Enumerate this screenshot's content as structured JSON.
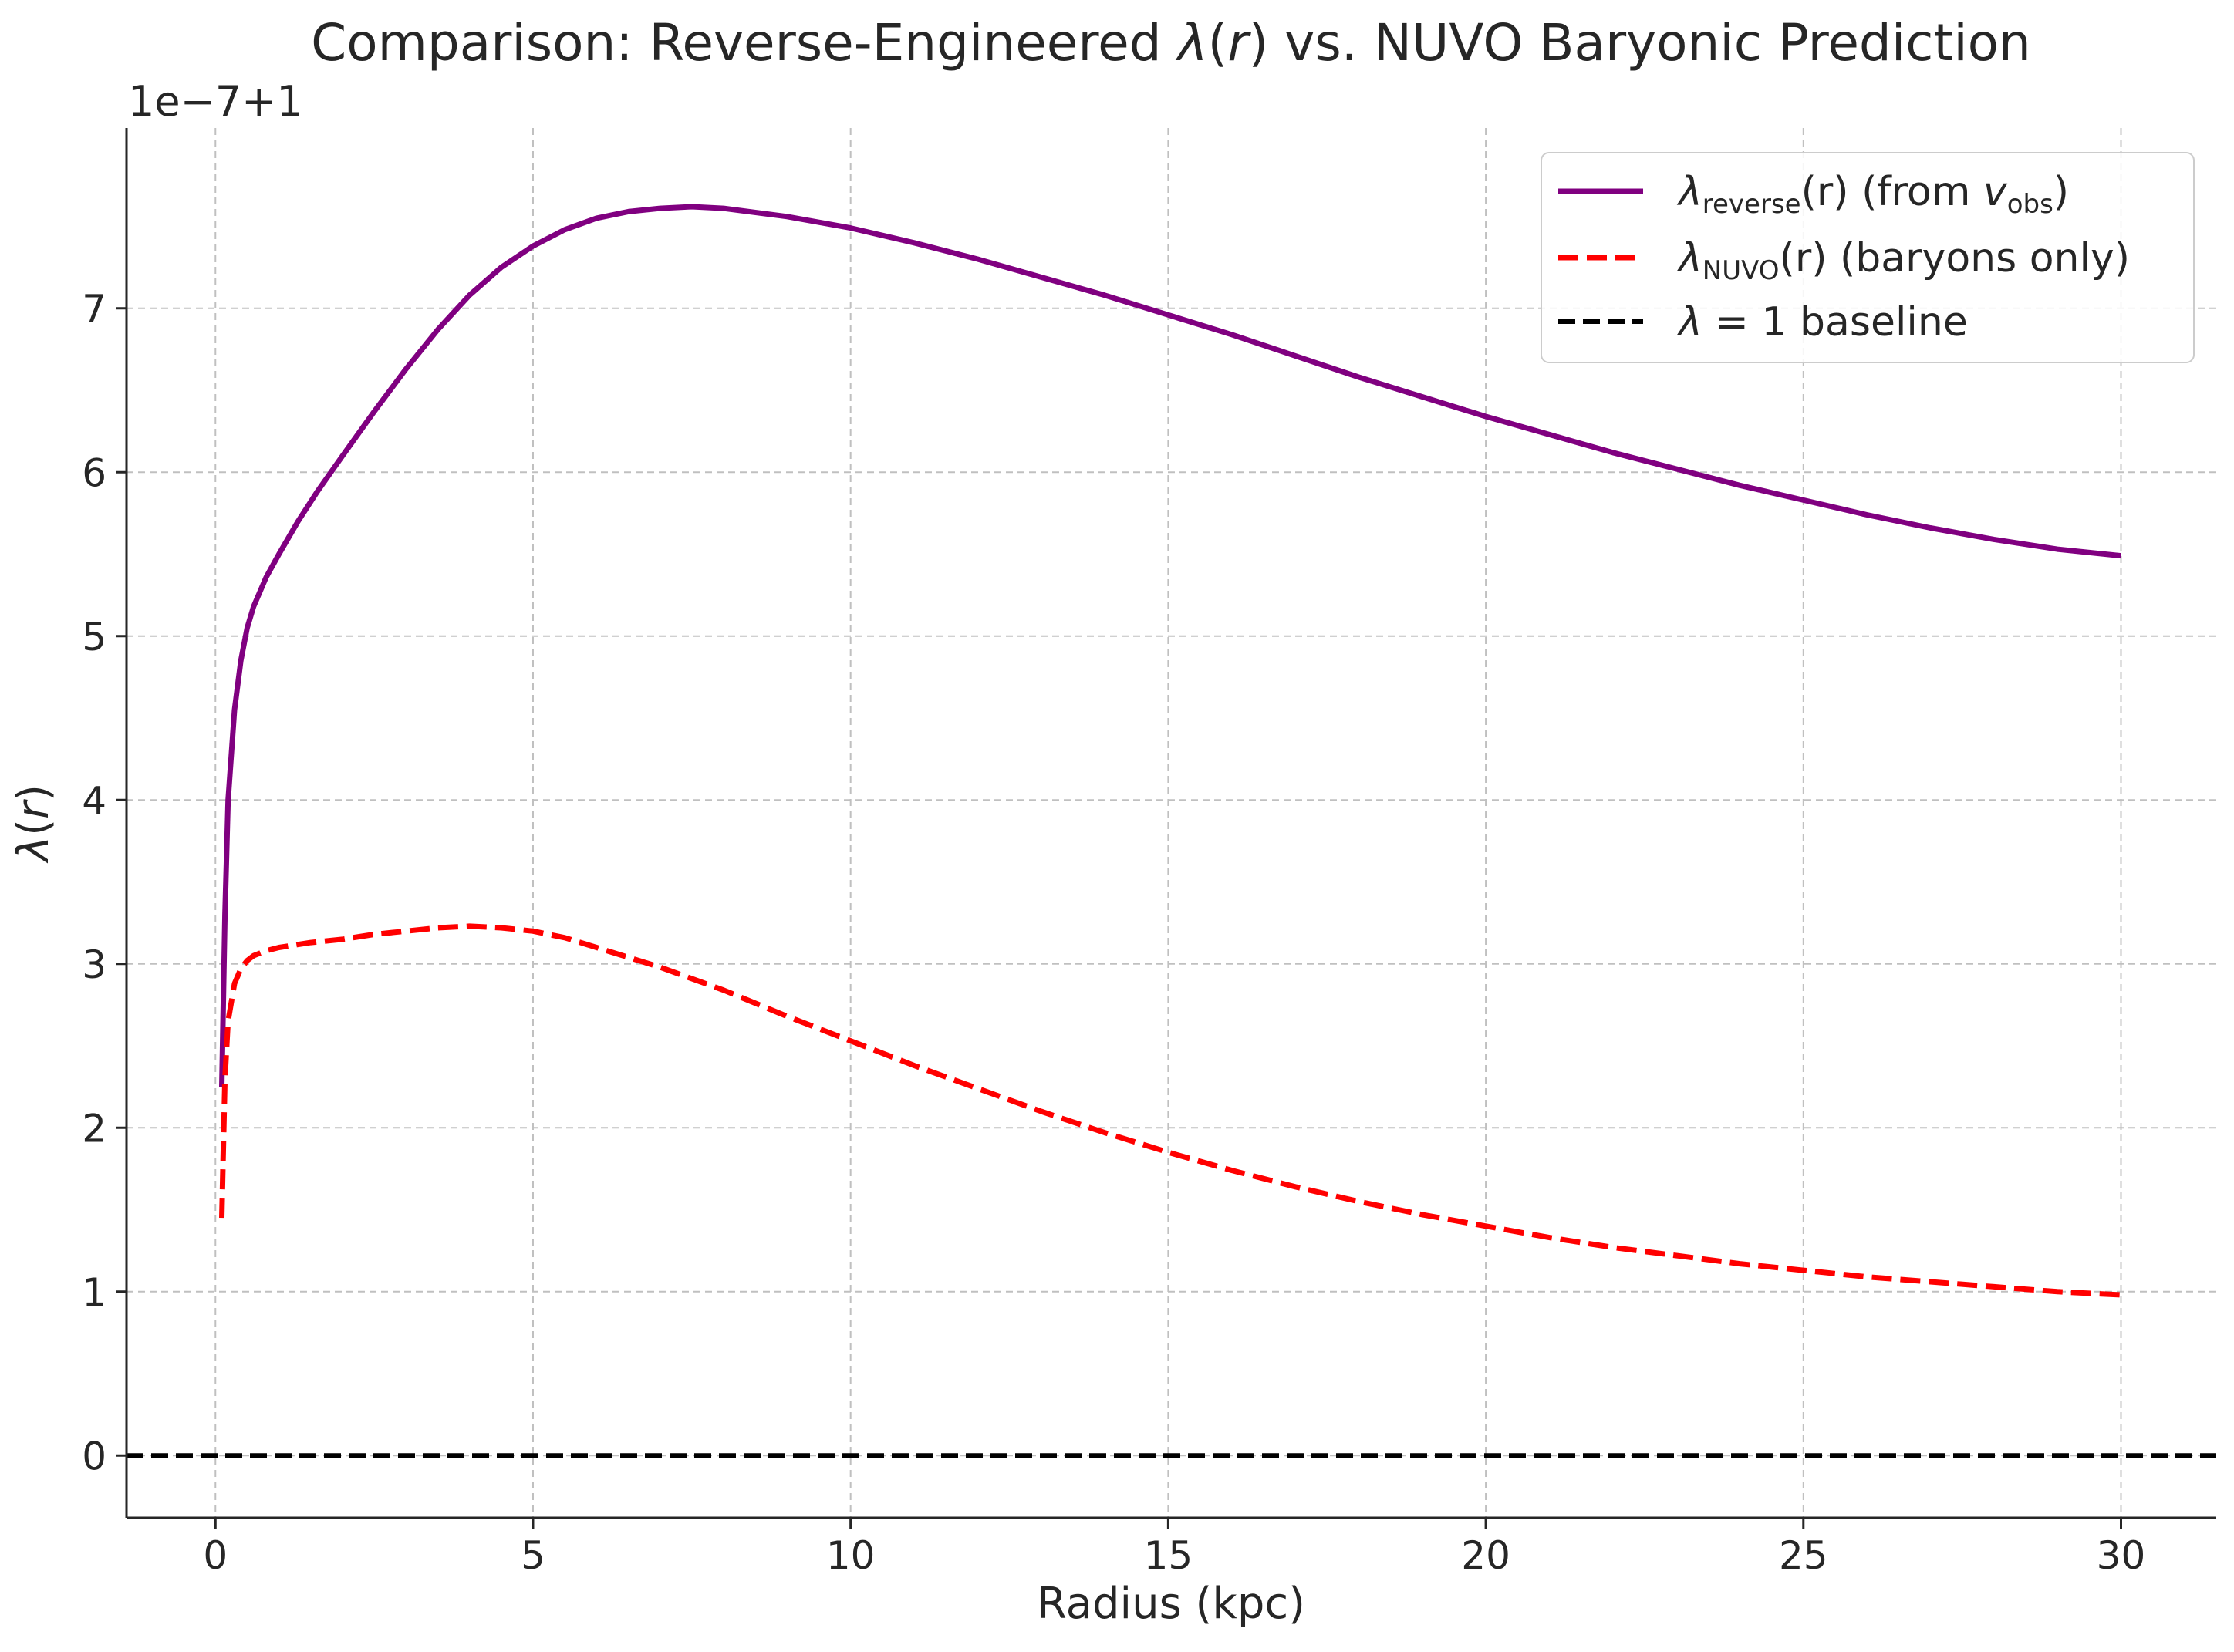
{
  "chart_data": {
    "type": "line",
    "title": "Comparison: Reverse-Engineered λ(r) vs. NUVO Baryonic Prediction",
    "title_parts": {
      "before": "Comparison: Reverse-Engineered ",
      "lambda": "λ",
      "paren_open": "(",
      "r": "r",
      "paren_close": ")",
      "after": " vs. NUVO Baryonic Prediction"
    },
    "xlabel": "Radius (kpc)",
    "ylabel": "λ(r)",
    "ylabel_parts": {
      "lambda": "λ",
      "paren_open": "(",
      "r": "r",
      "paren_close": ")"
    },
    "y_offset_label": "1e−7+1",
    "xlim": [
      -1.4,
      31.5
    ],
    "ylim": [
      -0.38,
      8.1
    ],
    "xticks": [
      0,
      5,
      10,
      15,
      20,
      25,
      30
    ],
    "yticks": [
      0,
      1,
      2,
      3,
      4,
      5,
      6,
      7
    ],
    "xtick_labels": [
      "0",
      "5",
      "10",
      "15",
      "20",
      "25",
      "30"
    ],
    "ytick_labels": [
      "0",
      "1",
      "2",
      "3",
      "4",
      "5",
      "6",
      "7"
    ],
    "grid": true,
    "legend_position": "top-right",
    "series": [
      {
        "name": "λ_reverse(r) (from v_obs)",
        "legend": {
          "lambda": "λ",
          "sub": "reverse",
          "mid": "(r) (from ",
          "v": "v",
          "vsub": "obs",
          "end": ")"
        },
        "color": "#800080",
        "style": "solid",
        "x": [
          0.1,
          0.15,
          0.2,
          0.3,
          0.4,
          0.5,
          0.6,
          0.8,
          1.0,
          1.3,
          1.6,
          2.0,
          2.5,
          3.0,
          3.5,
          4.0,
          4.5,
          5.0,
          5.5,
          6.0,
          6.5,
          7.0,
          7.5,
          8.0,
          9.0,
          10.0,
          11.0,
          12.0,
          13.0,
          14.0,
          15.0,
          16.0,
          17.0,
          18.0,
          19.0,
          20.0,
          21.0,
          22.0,
          23.0,
          24.0,
          25.0,
          26.0,
          27.0,
          28.0,
          29.0,
          30.0
        ],
        "y": [
          2.25,
          3.3,
          4.0,
          4.55,
          4.85,
          5.05,
          5.18,
          5.36,
          5.5,
          5.7,
          5.88,
          6.1,
          6.37,
          6.63,
          6.87,
          7.08,
          7.25,
          7.38,
          7.48,
          7.55,
          7.59,
          7.61,
          7.62,
          7.61,
          7.56,
          7.49,
          7.4,
          7.3,
          7.19,
          7.08,
          6.96,
          6.84,
          6.71,
          6.58,
          6.46,
          6.34,
          6.23,
          6.12,
          6.02,
          5.92,
          5.83,
          5.74,
          5.66,
          5.59,
          5.53,
          5.49
        ]
      },
      {
        "name": "λ_NUVO(r) (baryons only)",
        "legend": {
          "lambda": "λ",
          "sub": "NUVO",
          "end": "(r) (baryons only)"
        },
        "color": "#ff0000",
        "style": "dashed",
        "x": [
          0.1,
          0.15,
          0.2,
          0.3,
          0.4,
          0.5,
          0.6,
          0.8,
          1.0,
          1.5,
          2.0,
          2.5,
          3.0,
          3.5,
          4.0,
          4.5,
          5.0,
          5.5,
          6.0,
          7.0,
          8.0,
          9.0,
          10.0,
          11.0,
          12.0,
          13.0,
          14.0,
          15.0,
          16.0,
          17.0,
          18.0,
          19.0,
          20.0,
          21.0,
          22.0,
          23.0,
          24.0,
          25.0,
          26.0,
          27.0,
          28.0,
          29.0,
          30.0
        ],
        "y": [
          1.45,
          2.3,
          2.65,
          2.88,
          2.97,
          3.02,
          3.05,
          3.08,
          3.1,
          3.13,
          3.15,
          3.18,
          3.2,
          3.22,
          3.23,
          3.22,
          3.2,
          3.16,
          3.1,
          2.98,
          2.84,
          2.68,
          2.53,
          2.38,
          2.24,
          2.1,
          1.97,
          1.85,
          1.74,
          1.64,
          1.55,
          1.47,
          1.4,
          1.33,
          1.27,
          1.22,
          1.17,
          1.13,
          1.09,
          1.06,
          1.03,
          1.0,
          0.98
        ]
      },
      {
        "name": "λ = 1 baseline",
        "legend": {
          "lambda": "λ",
          "mid": " = 1 baseline"
        },
        "color": "#000000",
        "style": "dashed",
        "x": [
          -1.4,
          31.5
        ],
        "y": [
          0,
          0
        ]
      }
    ]
  }
}
